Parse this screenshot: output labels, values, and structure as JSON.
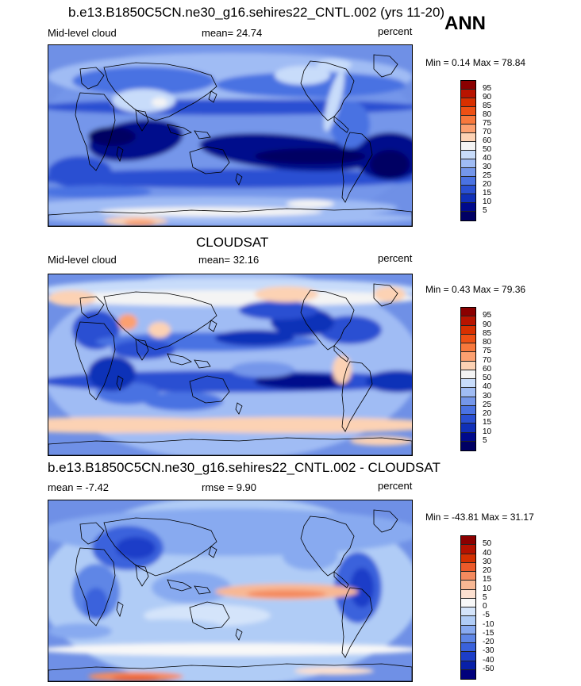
{
  "season": "ANN",
  "panels": [
    {
      "title": "b.e13.B1850C5CN.ne30_g16.sehires22_CNTL.002 (yrs 11-20)",
      "left_label": "Mid-level cloud",
      "center_label": "mean=  24.74",
      "right_label": "percent",
      "minmax": "Min =   0.14 Max =  78.84",
      "levels": [
        "95",
        "90",
        "85",
        "80",
        "75",
        "70",
        "60",
        "50",
        "40",
        "30",
        "25",
        "20",
        "15",
        "10",
        "5"
      ]
    },
    {
      "title": "CLOUDSAT",
      "left_label": "Mid-level cloud",
      "center_label": "mean=  32.16",
      "right_label": "percent",
      "minmax": "Min =   0.43 Max =  79.36",
      "levels": [
        "95",
        "90",
        "85",
        "80",
        "75",
        "70",
        "60",
        "50",
        "40",
        "30",
        "25",
        "20",
        "15",
        "10",
        "5"
      ]
    },
    {
      "title": "b.e13.B1850C5CN.ne30_g16.sehires22_CNTL.002 - CLOUDSAT",
      "left_label": "mean =  -7.42",
      "center_label": "rmse =    9.90",
      "right_label": "percent",
      "minmax": "Min = -43.81 Max =  31.17",
      "levels": [
        "50",
        "40",
        "30",
        "20",
        "15",
        "10",
        "5",
        "0",
        "-5",
        "-10",
        "-15",
        "-20",
        "-30",
        "-40",
        "-50"
      ]
    }
  ],
  "colors": {
    "abs_scale": [
      "#8b0000",
      "#b81400",
      "#d83000",
      "#ee5014",
      "#f8783c",
      "#fca070",
      "#fcd2b4",
      "#f4f4f4",
      "#c8dcfa",
      "#a0bcf4",
      "#7496ea",
      "#4a72e2",
      "#2a50d2",
      "#1030b8",
      "#000a8c",
      "#000064"
    ],
    "diff_scale": [
      "#8b0000",
      "#b41200",
      "#d43000",
      "#ec5a2a",
      "#f48a5e",
      "#f8b894",
      "#fce0d0",
      "#f8f8f8",
      "#d4e4fa",
      "#b0ccf6",
      "#88aaf0",
      "#5e86e6",
      "#3a62dc",
      "#1c3ec8",
      "#0820a8",
      "#00007c"
    ]
  }
}
